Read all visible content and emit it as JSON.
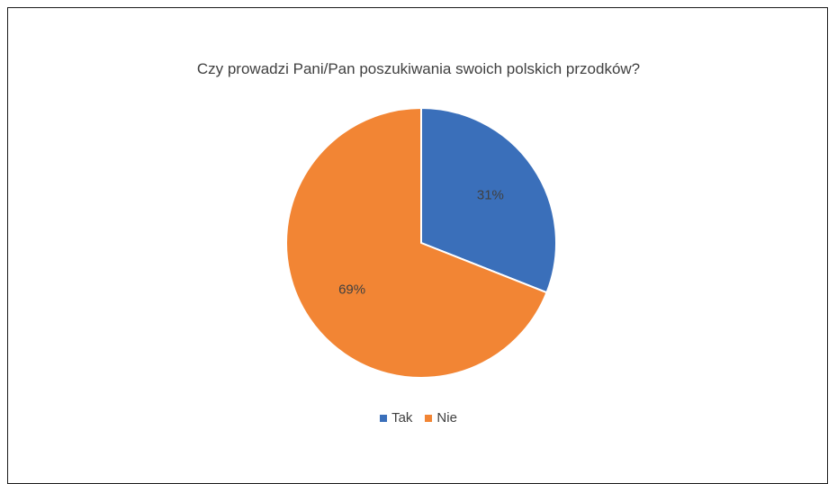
{
  "chart_data": {
    "type": "pie",
    "title": "Czy prowadzi Pani/Pan poszukiwania swoich polskich przodków?",
    "categories": [
      "Tak",
      "Nie"
    ],
    "values": [
      31,
      69
    ],
    "data_labels": [
      "31%",
      "69%"
    ],
    "colors": [
      "#3a6fba",
      "#f28534"
    ],
    "legend_position": "bottom"
  }
}
